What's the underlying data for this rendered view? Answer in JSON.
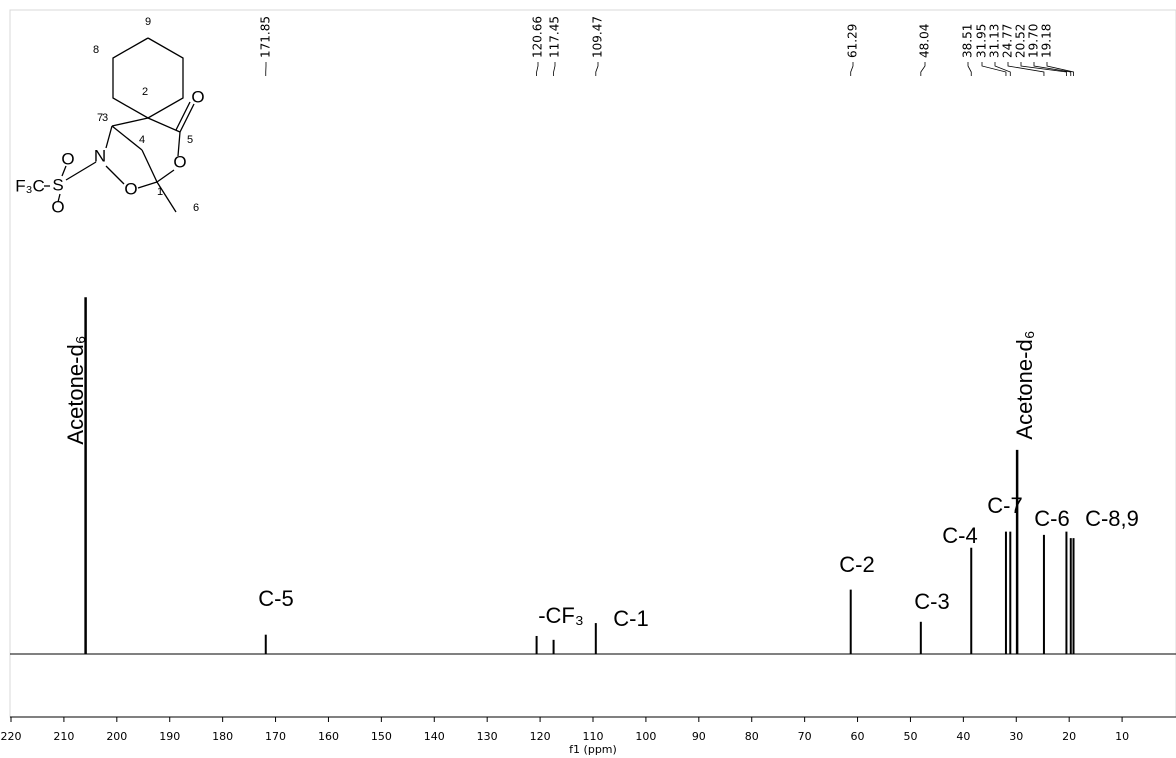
{
  "chart_data": {
    "type": "nmr",
    "xlabel": "f1 (ppm)",
    "xlim": [
      220,
      0
    ],
    "xticks": [
      220,
      210,
      200,
      190,
      180,
      170,
      160,
      150,
      140,
      130,
      120,
      110,
      100,
      90,
      80,
      70,
      60,
      50,
      40,
      30,
      20,
      10
    ],
    "x": [
      171.85,
      120.66,
      117.45,
      109.47,
      61.29,
      48.04,
      38.51,
      31.95,
      31.13,
      24.77,
      20.52,
      19.7,
      19.18
    ],
    "x_labels": [
      "171.85",
      "120.66",
      "117.45",
      "109.47",
      "61.29",
      "48.04",
      "38.51",
      "31.95",
      "31.13",
      "24.77",
      "20.52",
      "19.70",
      "19.18"
    ],
    "values": [
      3,
      2.8,
      2.2,
      4.8,
      10,
      5,
      16.5,
      19,
      19,
      18.5,
      19,
      18,
      18
    ],
    "solvent": {
      "x": [
        205.9,
        29.84
      ],
      "values": [
        55.4,
        31.7
      ]
    },
    "ylim": [
      0,
      100
    ],
    "color": "#000000",
    "annotations": [
      "C-5",
      "-CF₃",
      "C-1",
      "C-2",
      "C-3",
      "C-4",
      "C-7",
      "C-6",
      "C-8,9",
      "Acetone-d₆",
      "Acetone-d₆"
    ]
  },
  "structure": {
    "atoms": [
      "F₃C",
      "S",
      "O",
      "O",
      "N",
      "O",
      "O",
      "O"
    ],
    "numbers": [
      "9",
      "8",
      "7",
      "2",
      "3",
      "4",
      "5",
      "1",
      "6"
    ]
  }
}
